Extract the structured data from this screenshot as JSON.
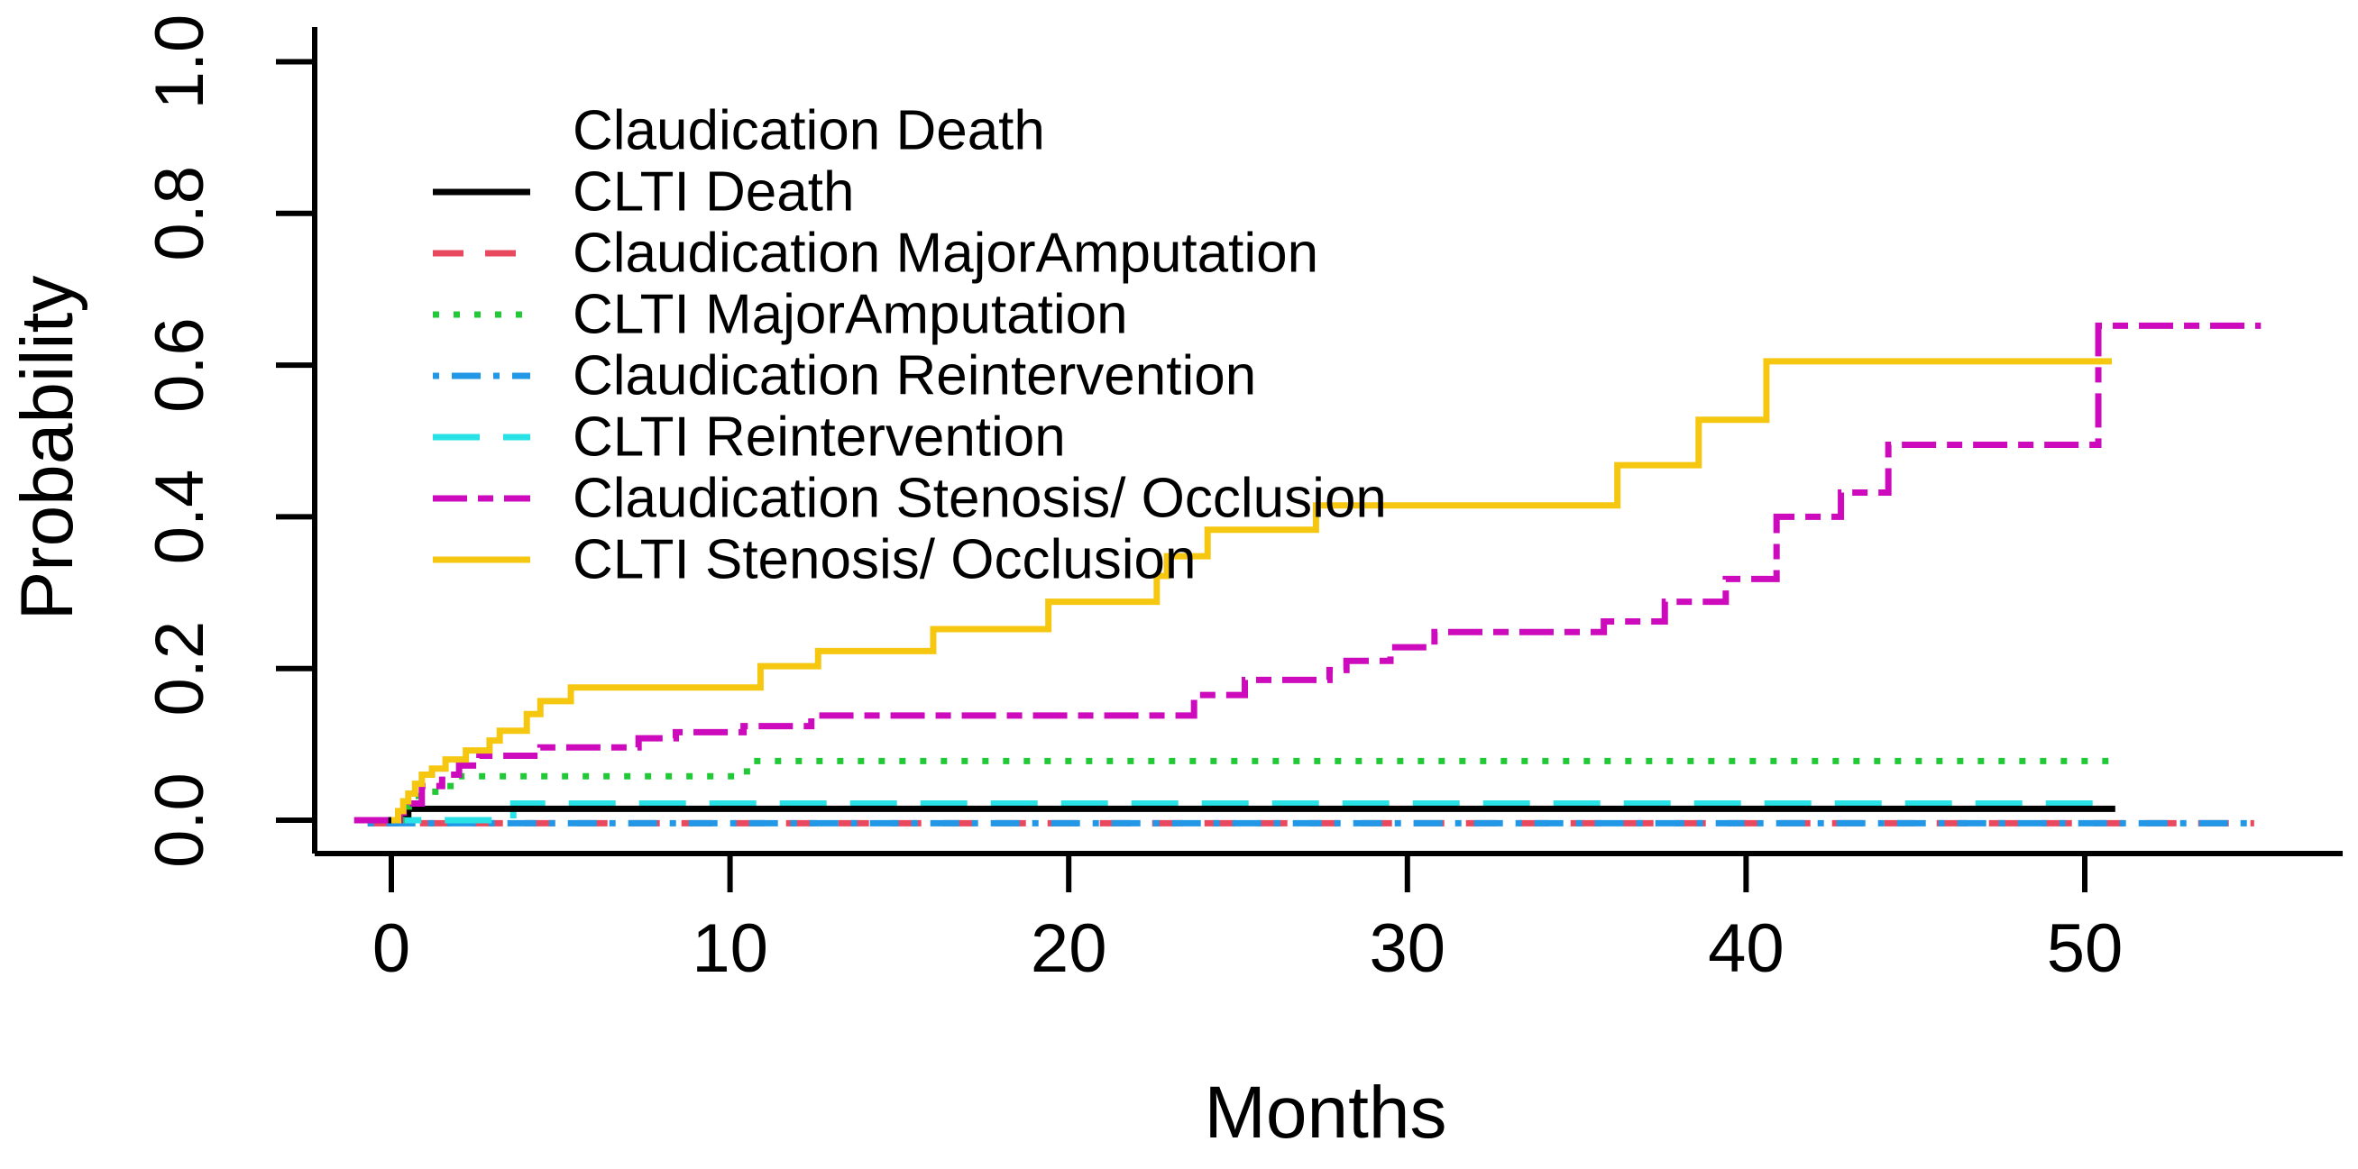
{
  "chart_data": {
    "type": "line",
    "variant": "step-function cumulative incidence (Kaplan-Meier style)",
    "title": "",
    "xlabel": "Months",
    "ylabel": "Probability",
    "xlim": [
      -2.3,
      57.6
    ],
    "ylim": [
      -0.04,
      1.05
    ],
    "x_ticks": [
      0,
      10,
      20,
      30,
      40,
      50
    ],
    "y_ticks": [
      0.0,
      0.2,
      0.4,
      0.6,
      0.8,
      1.0
    ],
    "y_tick_labels": [
      "0.0",
      "0.2",
      "0.4",
      "0.6",
      "0.8",
      "1.0"
    ],
    "grid": false,
    "legend_position": "top-left-inside",
    "series": [
      {
        "name": "Claudication Death",
        "color": null,
        "linestyle": "none",
        "dasharray": "",
        "points": []
      },
      {
        "name": "CLTI Death",
        "color": "#000000",
        "linestyle": "solid",
        "dasharray": "",
        "points": [
          [
            -0.3,
            0
          ],
          [
            0.2,
            0.008
          ],
          [
            0.5,
            0.015
          ],
          [
            50.9,
            0.015
          ]
        ]
      },
      {
        "name": "Claudication MajorAmputation",
        "color": "#E8495F",
        "linestyle": "dashed",
        "dasharray": "34 24",
        "points": [
          [
            -0.7,
            -0.004
          ],
          [
            55.0,
            -0.004
          ]
        ]
      },
      {
        "name": "CLTI MajorAmputation",
        "color": "#21C936",
        "linestyle": "dotted",
        "dasharray": "7 16",
        "points": [
          [
            -0.4,
            0
          ],
          [
            0.3,
            0.018
          ],
          [
            0.7,
            0.032
          ],
          [
            1.3,
            0.045
          ],
          [
            2.0,
            0.058
          ],
          [
            10.5,
            0.078
          ],
          [
            50.7,
            0.078
          ]
        ]
      },
      {
        "name": "Claudication Reintervention",
        "color": "#2297E6",
        "linestyle": "dashdot",
        "dasharray": "7 14 32 14",
        "points": [
          [
            -0.7,
            -0.004
          ],
          [
            55.0,
            -0.004
          ]
        ]
      },
      {
        "name": "CLTI Reintervention",
        "color": "#28E2E5",
        "linestyle": "longdash",
        "dasharray": "52 26",
        "points": [
          [
            -0.5,
            0
          ],
          [
            3.6,
            0.022
          ],
          [
            50.9,
            0.022
          ]
        ]
      },
      {
        "name": "Claudication Stenosis/ Occlusion",
        "color": "#CD0BBC",
        "linestyle": "twodash",
        "dasharray": "38 12 17 12",
        "points": [
          [
            -1.1,
            0
          ],
          [
            0.25,
            0.01
          ],
          [
            0.55,
            0.022
          ],
          [
            0.9,
            0.045
          ],
          [
            1.5,
            0.06
          ],
          [
            2.0,
            0.072
          ],
          [
            2.6,
            0.085
          ],
          [
            4.4,
            0.096
          ],
          [
            7.3,
            0.108
          ],
          [
            8.4,
            0.116
          ],
          [
            10.4,
            0.124
          ],
          [
            12.4,
            0.138
          ],
          [
            23.7,
            0.165
          ],
          [
            25.2,
            0.185
          ],
          [
            27.7,
            0.198
          ],
          [
            28.2,
            0.21
          ],
          [
            29.5,
            0.228
          ],
          [
            30.8,
            0.248
          ],
          [
            35.8,
            0.262
          ],
          [
            37.6,
            0.288
          ],
          [
            39.4,
            0.318
          ],
          [
            40.9,
            0.4
          ],
          [
            42.8,
            0.432
          ],
          [
            44.2,
            0.495
          ],
          [
            50.4,
            0.652
          ],
          [
            55.2,
            0.652
          ]
        ]
      },
      {
        "name": "CLTI Stenosis/ Occlusion",
        "color": "#F5C710",
        "linestyle": "solid",
        "dasharray": "",
        "points": [
          [
            0,
            0
          ],
          [
            0.2,
            0.012
          ],
          [
            0.35,
            0.025
          ],
          [
            0.5,
            0.035
          ],
          [
            0.7,
            0.048
          ],
          [
            0.9,
            0.06
          ],
          [
            1.2,
            0.068
          ],
          [
            1.6,
            0.08
          ],
          [
            2.2,
            0.092
          ],
          [
            2.9,
            0.105
          ],
          [
            3.2,
            0.118
          ],
          [
            4.0,
            0.14
          ],
          [
            4.4,
            0.157
          ],
          [
            5.3,
            0.175
          ],
          [
            10.9,
            0.203
          ],
          [
            12.6,
            0.223
          ],
          [
            16.0,
            0.252
          ],
          [
            19.4,
            0.288
          ],
          [
            22.6,
            0.322
          ],
          [
            22.9,
            0.348
          ],
          [
            24.1,
            0.383
          ],
          [
            27.3,
            0.415
          ],
          [
            36.2,
            0.468
          ],
          [
            38.6,
            0.528
          ],
          [
            40.6,
            0.605
          ],
          [
            50.8,
            0.605
          ]
        ]
      }
    ],
    "legend": [
      "Claudication Death",
      "CLTI Death",
      "Claudication MajorAmputation",
      "CLTI MajorAmputation",
      "Claudication Reintervention",
      "CLTI Reintervention",
      "Claudication Stenosis/ Occlusion",
      "CLTI Stenosis/ Occlusion"
    ]
  },
  "axis": {
    "x_title": "Months",
    "y_title": "Probability",
    "axis_color": "#000000"
  }
}
